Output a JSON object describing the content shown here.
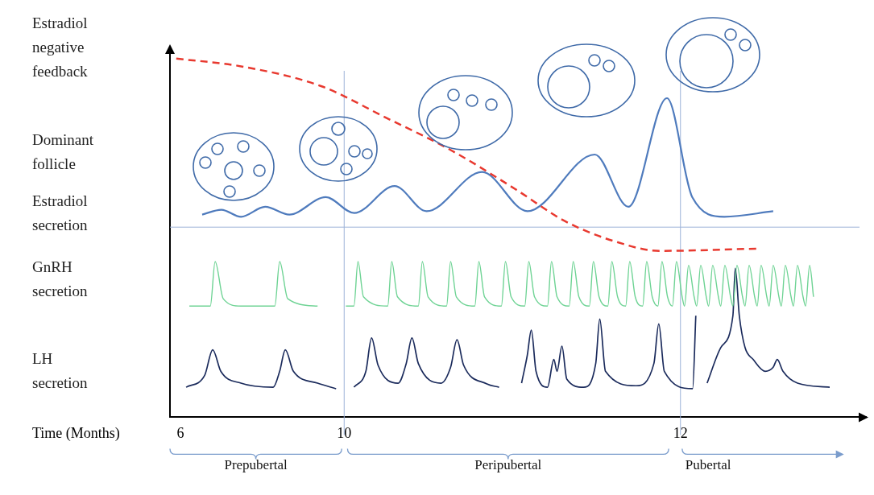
{
  "chart_data": {
    "type": "line",
    "xlabel": "Time (Months)",
    "xlim": [
      5.75,
      13.1
    ],
    "xticks": [
      6,
      10,
      12
    ],
    "ylim": [
      0,
      100
    ],
    "yticks": [],
    "tick_labels": "x",
    "grid": false,
    "annotations": [
      "Dominant follicle"
    ],
    "periods": [
      {
        "label": "Prepubertal",
        "start": 5.75,
        "end": 9.94
      },
      {
        "label": "Peripubertal",
        "start": 10.02,
        "end": 11.93
      },
      {
        "label": "Pubertal",
        "start": 12.01,
        "end": 12.96
      }
    ],
    "series": [
      {
        "name": "Estradiol negative feedback",
        "color": "#e8392f",
        "line_style": "dashed",
        "x": [
          5.9,
          7.48,
          9.45,
          10.25,
          10.63,
          11.02,
          11.31,
          11.6,
          11.88,
          12.45
        ],
        "values": [
          96.8,
          94.7,
          89.3,
          80.8,
          72.2,
          61.5,
          53,
          47.6,
          44.9,
          45.5
        ]
      },
      {
        "name": "Estradiol secretion",
        "color": "#4f7bbd",
        "line_style": "solid",
        "x": [
          6.53,
          7.0,
          7.48,
          8.07,
          8.66,
          9.55,
          10.06,
          10.3,
          10.49,
          10.82,
          11.09,
          11.49,
          11.69,
          11.92,
          12.07,
          12.26,
          12.55
        ],
        "values": [
          54.7,
          56,
          54.1,
          56.8,
          54.7,
          59.4,
          55.1,
          62.4,
          55.6,
          66.2,
          55.6,
          70.9,
          56.8,
          86.1,
          59.4,
          54.1,
          55.6
        ]
      },
      {
        "name": "GnRH secretion",
        "color": "#6ed394",
        "line_style": "solid",
        "x": [
          6.217,
          6.729,
          6.847,
          7.044,
          7.478,
          8.305,
          8.424,
          8.621,
          9.35,
          9.7,
          10.01,
          10.058,
          10.082,
          10.115,
          10.259,
          10.283,
          10.317,
          10.441,
          10.465,
          10.499,
          10.609,
          10.633,
          10.667,
          10.777,
          10.801,
          10.835,
          10.935,
          10.959,
          10.993,
          11.074,
          11.098,
          11.132,
          11.209,
          11.233,
          11.266,
          11.338,
          11.362,
          11.396,
          11.458,
          11.482,
          11.516,
          11.568,
          11.592,
          11.626,
          11.674,
          11.698,
          11.731,
          11.775,
          11.799,
          11.832,
          11.866,
          11.89,
          11.923,
          11.952,
          11.976,
          12.01,
          12.024,
          12.048,
          12.081,
          12.096,
          12.12,
          12.153,
          12.167,
          12.191,
          12.225,
          12.239,
          12.263,
          12.297,
          12.311,
          12.335,
          12.368,
          12.383,
          12.407,
          12.44,
          12.455,
          12.478,
          12.512,
          12.526,
          12.55,
          12.584,
          12.598,
          12.622,
          12.656,
          12.67,
          12.694,
          12.727,
          12.742,
          12.766,
          12.789
        ],
        "values": [
          30,
          30,
          42,
          32,
          30,
          30,
          42,
          32,
          30,
          null,
          30,
          30,
          42,
          32.5,
          30,
          42,
          32.5,
          30,
          42,
          32.5,
          30,
          42,
          32.5,
          30,
          42,
          32.5,
          30,
          42,
          32.5,
          30,
          42,
          32.5,
          30,
          42,
          32.5,
          30,
          42,
          32.5,
          30,
          42,
          32.5,
          30,
          42,
          32.5,
          30,
          42,
          32.5,
          30,
          42,
          32.5,
          30,
          42,
          32.5,
          30,
          42,
          32.5,
          30,
          41,
          32.5,
          30,
          41,
          32.5,
          30,
          41,
          32.5,
          30,
          41,
          32.5,
          30,
          41,
          32.5,
          30,
          41,
          32.5,
          30,
          41,
          32.5,
          30,
          41,
          32.5,
          30,
          41,
          32.5,
          30,
          41,
          32.5,
          30,
          41,
          32.5
        ]
      },
      {
        "name": "LH secretion",
        "color": "#1b2b5c",
        "line_style": "solid",
        "x": [
          6.138,
          6.591,
          6.788,
          6.985,
          7.478,
          8.266,
          8.424,
          8.562,
          8.759,
          9.35,
          9.803,
          9.93,
          10.058,
          10.129,
          10.163,
          10.201,
          10.321,
          10.369,
          10.403,
          10.441,
          10.576,
          10.633,
          10.671,
          10.71,
          10.849,
          10.921,
          10.99,
          11.055,
          11.089,
          11.113,
          11.141,
          11.209,
          11.247,
          11.266,
          11.295,
          11.324,
          11.424,
          11.496,
          11.52,
          11.554,
          11.736,
          11.842,
          11.871,
          11.904,
          12.072,
          12.091,
          12.12,
          12.158,
          12.239,
          12.311,
          12.325,
          12.349,
          12.383,
          12.431,
          12.502,
          12.55,
          12.574,
          12.608,
          12.694,
          12.885
        ],
        "values": [
          8.1,
          11.3,
          18.2,
          12.4,
          9.2,
          8.1,
          12.4,
          18.2,
          12.4,
          9.2,
          7.7,
          null,
          8.1,
          12.4,
          21.4,
          14.1,
          9.2,
          14.5,
          21.4,
          14.5,
          9.2,
          13.5,
          20.9,
          14.1,
          9.0,
          8.1,
          null,
          9.2,
          16.7,
          23.5,
          12.4,
          8.1,
          15.6,
          12.4,
          19.2,
          10.3,
          8.1,
          14.5,
          26.5,
          12.4,
          8.5,
          14.5,
          25.2,
          12.4,
          7.7,
          27.4,
          null,
          9.2,
          18.8,
          27.4,
          40.2,
          27.4,
          18.8,
          15.6,
          12.4,
          13.5,
          15.6,
          12.4,
          9.2,
          8.1
        ]
      }
    ]
  }
}
